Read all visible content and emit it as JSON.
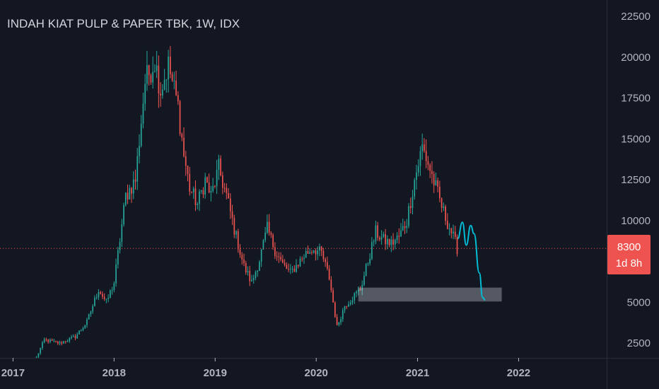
{
  "chart_data": {
    "type": "candlestick",
    "title": "INDAH KIAT PULP & PAPER TBK, 1W, IDX",
    "y_ticks": [
      "2500",
      "5000",
      "7500",
      "10000",
      "12500",
      "15000",
      "17500",
      "20000",
      "22500"
    ],
    "y_tick_values": [
      2500,
      5000,
      7500,
      10000,
      12500,
      15000,
      17500,
      20000,
      22500
    ],
    "x_ticks": [
      "2017",
      "2018",
      "2019",
      "2020",
      "2021",
      "2022"
    ],
    "ylim": [
      1600,
      23500
    ],
    "xlim": [
      "2016-11-15",
      "2022-11-15"
    ],
    "current_price": {
      "label": "8300",
      "value": 8300,
      "countdown": "1d 8h"
    },
    "colors": {
      "up": "#26a69a",
      "down": "#ef5350",
      "price_line": "#ef5350",
      "projection": "#00bcd4",
      "zone": "#d1d4dc",
      "background": "#131722"
    },
    "support_zone": {
      "x_start": "2020-06-01",
      "x_end": "2021-11-01",
      "y_low": 5050,
      "y_high": 5900
    },
    "projection_path": [
      [
        "2021-05-26",
        8900
      ],
      [
        "2021-06-12",
        9900
      ],
      [
        "2021-06-26",
        8500
      ],
      [
        "2021-07-12",
        9700
      ],
      [
        "2021-07-24",
        9200
      ],
      [
        "2021-08-12",
        6800
      ],
      [
        "2021-08-24",
        5300
      ],
      [
        "2021-09-02",
        5150
      ]
    ],
    "series": [
      {
        "name": "",
        "points": [
          [
            "2017-03-27",
            1650
          ],
          [
            "2017-04-24",
            2700
          ],
          [
            "2017-06-19",
            2500
          ],
          [
            "2017-08-14",
            2900
          ],
          [
            "2017-09-25",
            3800
          ],
          [
            "2017-11-06",
            5800
          ],
          [
            "2017-12-04",
            5000
          ],
          [
            "2018-01-01",
            6200
          ],
          [
            "2018-02-12",
            11500
          ],
          [
            "2018-03-19",
            12500
          ],
          [
            "2018-04-23",
            18500
          ],
          [
            "2018-05-28",
            19800
          ],
          [
            "2018-06-18",
            18000
          ],
          [
            "2018-07-16",
            19500
          ],
          [
            "2018-08-20",
            17000
          ],
          [
            "2018-09-10",
            14000
          ],
          [
            "2018-10-01",
            12000
          ],
          [
            "2018-10-29",
            11000
          ],
          [
            "2018-11-26",
            12500
          ],
          [
            "2018-12-17",
            11500
          ],
          [
            "2019-01-14",
            13200
          ],
          [
            "2019-02-11",
            11500
          ],
          [
            "2019-03-18",
            9000
          ],
          [
            "2019-04-15",
            7200
          ],
          [
            "2019-05-13",
            6200
          ],
          [
            "2019-06-10",
            7600
          ],
          [
            "2019-07-08",
            9500
          ],
          [
            "2019-08-05",
            8200
          ],
          [
            "2019-09-02",
            7300
          ],
          [
            "2019-09-30",
            6800
          ],
          [
            "2019-10-28",
            7400
          ],
          [
            "2019-11-25",
            8000
          ],
          [
            "2019-12-23",
            8300
          ],
          [
            "2020-01-20",
            8000
          ],
          [
            "2020-02-17",
            6500
          ],
          [
            "2020-03-16",
            3500
          ],
          [
            "2020-04-13",
            4800
          ],
          [
            "2020-05-11",
            5300
          ],
          [
            "2020-06-08",
            5800
          ],
          [
            "2020-07-06",
            7500
          ],
          [
            "2020-08-03",
            9300
          ],
          [
            "2020-08-31",
            8800
          ],
          [
            "2020-09-28",
            8600
          ],
          [
            "2020-10-26",
            9000
          ],
          [
            "2020-11-23",
            10000
          ],
          [
            "2020-12-21",
            12500
          ],
          [
            "2021-01-18",
            14500
          ],
          [
            "2021-02-08",
            13500
          ],
          [
            "2021-03-08",
            12000
          ],
          [
            "2021-04-05",
            10500
          ],
          [
            "2021-05-03",
            9300
          ],
          [
            "2021-05-24",
            8300
          ]
        ]
      }
    ]
  }
}
